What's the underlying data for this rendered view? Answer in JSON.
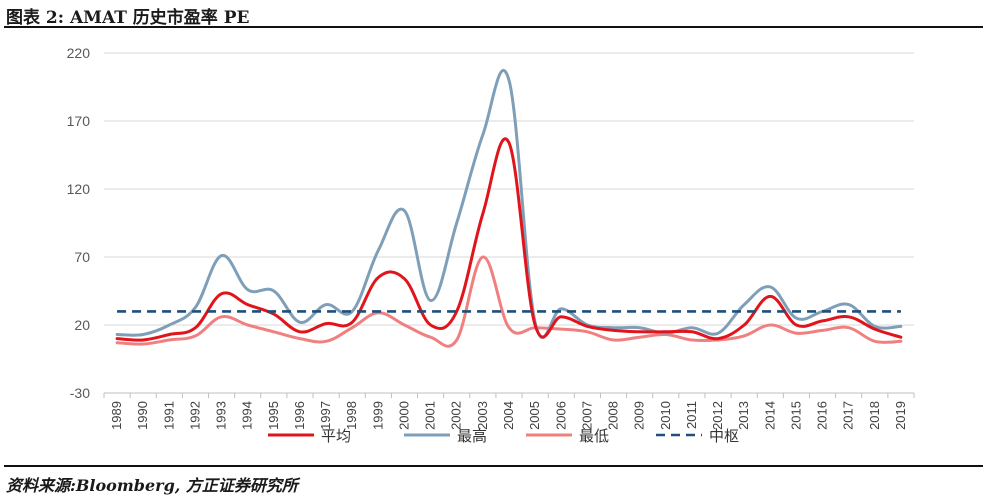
{
  "title": "图表 2:  AMAT 历史市盈率 PE",
  "source": "资料来源:Bloomberg, 方正证券研究所",
  "chart_data": {
    "type": "line",
    "title": "AMAT 历史市盈率 PE",
    "xlabel": "",
    "ylabel": "",
    "ylim": [
      -30,
      220
    ],
    "yticks": [
      220,
      170,
      120,
      70,
      20,
      -30
    ],
    "grid": true,
    "legend_position": "bottom",
    "categories": [
      "1989",
      "1990",
      "1991",
      "1992",
      "1993",
      "1994",
      "1995",
      "1996",
      "1997",
      "1998",
      "1999",
      "2000",
      "2001",
      "2002",
      "2003",
      "2004",
      "2005",
      "2006",
      "2007",
      "2008",
      "2009",
      "2010",
      "2011",
      "2012",
      "2013",
      "2014",
      "2015",
      "2016",
      "2017",
      "2018",
      "2019"
    ],
    "series": [
      {
        "name": "平均",
        "color": "#e0151c",
        "dash": false,
        "values": [
          10,
          9,
          13,
          18,
          43,
          35,
          28,
          15,
          21,
          22,
          55,
          54,
          20,
          30,
          102,
          154,
          20,
          26,
          19,
          16,
          15,
          15,
          15,
          10,
          20,
          41,
          20,
          23,
          26,
          17,
          11
        ]
      },
      {
        "name": "最高",
        "color": "#7f9fb8",
        "dash": false,
        "values": [
          13,
          13,
          20,
          33,
          71,
          46,
          45,
          22,
          35,
          30,
          75,
          104,
          38,
          95,
          160,
          200,
          22,
          32,
          20,
          18,
          18,
          14,
          18,
          14,
          35,
          48,
          25,
          30,
          35,
          19,
          19
        ]
      },
      {
        "name": "最低",
        "color": "#f08080",
        "dash": false,
        "values": [
          7,
          6,
          9,
          12,
          26,
          20,
          15,
          10,
          8,
          18,
          29,
          20,
          11,
          9,
          70,
          18,
          18,
          17,
          15,
          9,
          11,
          13,
          9,
          9,
          12,
          20,
          14,
          16,
          18,
          8,
          8
        ]
      },
      {
        "name": "中枢",
        "color": "#1f4e79",
        "dash": true,
        "values": [
          30,
          30,
          30,
          30,
          30,
          30,
          30,
          30,
          30,
          30,
          30,
          30,
          30,
          30,
          30,
          30,
          30,
          30,
          30,
          30,
          30,
          30,
          30,
          30,
          30,
          30,
          30,
          30,
          30,
          30,
          30
        ]
      }
    ]
  }
}
